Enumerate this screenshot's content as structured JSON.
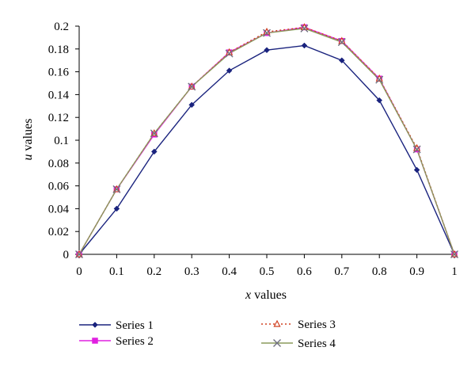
{
  "chart_data": {
    "type": "line",
    "title": "",
    "xlabel": {
      "var": "x",
      "rest": " values"
    },
    "ylabel": {
      "var": "u",
      "rest": " values"
    },
    "xlim": [
      0,
      1
    ],
    "ylim": [
      0,
      0.2
    ],
    "x_ticks": [
      "0",
      "0.1",
      "0.2",
      "0.3",
      "0.4",
      "0.5",
      "0.6",
      "0.7",
      "0.8",
      "0.9",
      "1"
    ],
    "y_ticks": [
      "0",
      "0.02",
      "0.04",
      "0.06",
      "0.08",
      "0.1",
      "0.12",
      "0.14",
      "0.16",
      "0.18",
      "0.2"
    ],
    "grid": false,
    "legend_position": "bottom",
    "x": [
      0,
      0.1,
      0.2,
      0.3,
      0.4,
      0.5,
      0.6,
      0.7,
      0.8,
      0.9,
      1
    ],
    "series": [
      {
        "name": "Series 1",
        "color": "#1a237e",
        "marker": "diamond",
        "line": "solid",
        "values": [
          0,
          0.04,
          0.09,
          0.131,
          0.161,
          0.179,
          0.183,
          0.17,
          0.135,
          0.074,
          0
        ]
      },
      {
        "name": "Series 2",
        "color": "#e020e0",
        "marker": "square",
        "line": "solid",
        "values": [
          0,
          0.057,
          0.105,
          0.147,
          0.177,
          0.194,
          0.199,
          0.187,
          0.154,
          0.092,
          0
        ]
      },
      {
        "name": "Series 3",
        "color": "#d04020",
        "marker": "triangle",
        "line": "dotted",
        "values": [
          0,
          0.057,
          0.106,
          0.147,
          0.177,
          0.195,
          0.199,
          0.187,
          0.154,
          0.093,
          0
        ]
      },
      {
        "name": "Series 4",
        "color": "#8a9a5b",
        "marker": "x",
        "line": "solid",
        "values": [
          0,
          0.057,
          0.106,
          0.147,
          0.176,
          0.194,
          0.198,
          0.186,
          0.153,
          0.092,
          0
        ]
      }
    ]
  }
}
